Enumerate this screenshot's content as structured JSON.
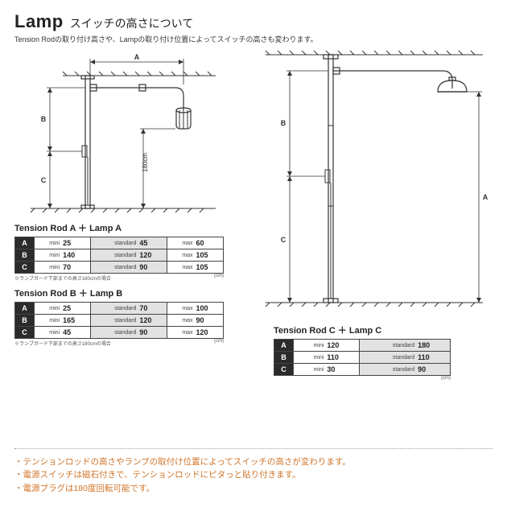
{
  "header": {
    "title_en": "Lamp",
    "title_jp": "スイッチの高さについて",
    "subtitle": "Tension Rodの取り付け高さや、Lampの取り付け位置によってスイッチの高さも変わります。"
  },
  "diagram_left": {
    "labels": {
      "A": "A",
      "B": "B",
      "C": "C",
      "height": "180cm"
    }
  },
  "diagram_right": {
    "labels": {
      "A": "A",
      "B": "B",
      "C": "C"
    }
  },
  "table_a": {
    "title": "Tension Rod A ＋ Lamp A",
    "rows": [
      {
        "label": "A",
        "cells": [
          [
            "mini",
            "25"
          ],
          [
            "standard",
            "45"
          ],
          [
            "max",
            "60"
          ]
        ]
      },
      {
        "label": "B",
        "cells": [
          [
            "mini",
            "140"
          ],
          [
            "standard",
            "120"
          ],
          [
            "max",
            "105"
          ]
        ]
      },
      {
        "label": "C",
        "cells": [
          [
            "mini",
            "70"
          ],
          [
            "standard",
            "90"
          ],
          [
            "max",
            "105"
          ]
        ]
      }
    ],
    "footnote": "※ランプガード下部までの高さ180cmの場合",
    "unit": "(cm)"
  },
  "table_b": {
    "title": "Tension Rod B ＋ Lamp B",
    "rows": [
      {
        "label": "A",
        "cells": [
          [
            "mini",
            "25"
          ],
          [
            "standard",
            "70"
          ],
          [
            "max",
            "100"
          ]
        ]
      },
      {
        "label": "B",
        "cells": [
          [
            "mini",
            "165"
          ],
          [
            "standard",
            "120"
          ],
          [
            "max",
            "90"
          ]
        ]
      },
      {
        "label": "C",
        "cells": [
          [
            "mini",
            "45"
          ],
          [
            "standard",
            "90"
          ],
          [
            "max",
            "120"
          ]
        ]
      }
    ],
    "footnote": "※ランプガード下部までの高さ180cmの場合",
    "unit": "(cm)"
  },
  "table_c": {
    "title": "Tension Rod C ＋ Lamp C",
    "rows": [
      {
        "label": "A",
        "cells": [
          [
            "mini",
            "120"
          ],
          [
            "standard",
            "180"
          ]
        ]
      },
      {
        "label": "B",
        "cells": [
          [
            "mini",
            "110"
          ],
          [
            "standard",
            "110"
          ]
        ]
      },
      {
        "label": "C",
        "cells": [
          [
            "mini",
            "30"
          ],
          [
            "standard",
            "90"
          ]
        ]
      }
    ],
    "unit": "(cm)"
  },
  "notes": [
    "・テンションロッドの高さやランプの取付け位置によってスイッチの高さが変わります。",
    "・電源スイッチは磁石付きで、テンションロッドにピタっと貼り付きます。",
    "・電源プラグは180度回転可能です。"
  ],
  "colors": {
    "note_color": "#d0752a",
    "row_header_bg": "#2b2b2b",
    "shade_bg": "#e2e2e2"
  }
}
